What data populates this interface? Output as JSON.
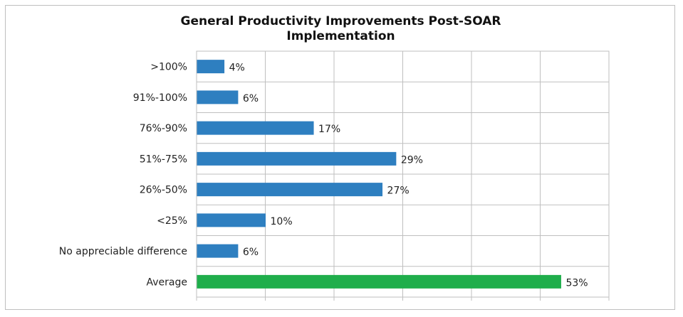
{
  "chart_data": {
    "type": "bar",
    "orientation": "horizontal",
    "title_lines": [
      "General Productivity Improvements Post-SOAR",
      "Implementation"
    ],
    "categories": [
      ">100%",
      "91%-100%",
      "76%-90%",
      "51%-75%",
      "26%-50%",
      "<25%",
      "No appreciable difference",
      "Average"
    ],
    "values": [
      4,
      6,
      17,
      29,
      27,
      10,
      6,
      53
    ],
    "value_labels": [
      "4%",
      "6%",
      "17%",
      "29%",
      "27%",
      "10%",
      "6%",
      "53%"
    ],
    "bar_colors": [
      "#2e7fc0",
      "#2e7fc0",
      "#2e7fc0",
      "#2e7fc0",
      "#2e7fc0",
      "#2e7fc0",
      "#2e7fc0",
      "#1fae4b"
    ],
    "xlim": [
      0,
      60
    ],
    "grid": true,
    "gridline_step": 10
  }
}
